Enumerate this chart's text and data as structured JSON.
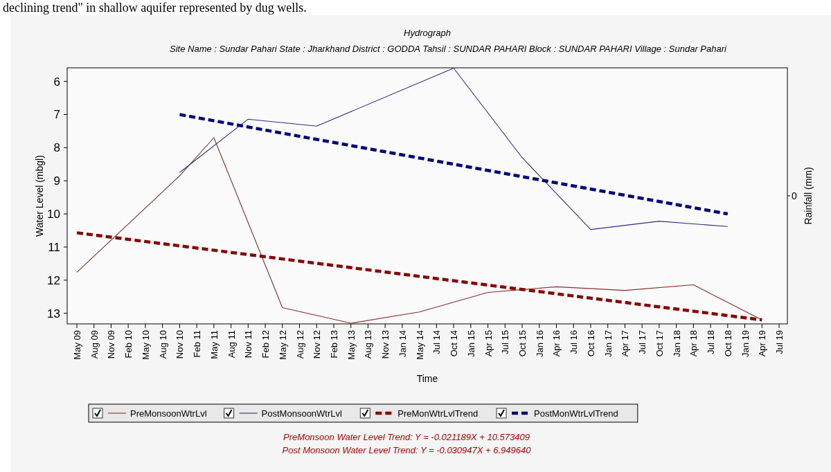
{
  "chart_data": {
    "type": "line",
    "title": "Hydrograph",
    "subtitle": "Site Name : Sundar Pahari  State : Jharkhand District : GODDA  Tahsil : SUNDAR PAHARI  Block : SUNDAR PAHARI Village : Sundar Pahari",
    "xlabel": "Time",
    "ylabel": "Water Level (mbgl)",
    "y2label": "Rainfall (mm)",
    "categories": [
      "May 09",
      "Aug 09",
      "Nov 09",
      "Feb 10",
      "May 10",
      "Aug 10",
      "Nov 10",
      "Feb 11",
      "May 11",
      "Aug 11",
      "Nov 11",
      "Feb 12",
      "May 12",
      "Aug 12",
      "Nov 12",
      "Feb 13",
      "May 13",
      "Aug 13",
      "Nov 13",
      "Jan 14",
      "May 14",
      "Jul 14",
      "Oct 14",
      "Jan 15",
      "Apr 15",
      "Jul 15",
      "Oct 15",
      "Jan 16",
      "Apr 16",
      "Jul 16",
      "Oct 16",
      "Jan 17",
      "Apr 17",
      "Jul 17",
      "Oct 17",
      "Jan 18",
      "Apr 18",
      "Jul 18",
      "Oct 18",
      "Jan 19",
      "Apr 19",
      "Jul 19"
    ],
    "series": [
      {
        "name": "PreMonsoonWtrLvl",
        "color": "#8b2c2c",
        "line_style": "solid",
        "values": [
          11.76,
          null,
          null,
          null,
          null,
          null,
          8.85,
          null,
          7.7,
          null,
          null,
          null,
          12.83,
          null,
          null,
          null,
          13.3,
          null,
          null,
          null,
          12.96,
          null,
          null,
          null,
          12.37,
          null,
          null,
          null,
          12.2,
          null,
          null,
          null,
          12.31,
          null,
          null,
          null,
          12.14,
          null,
          null,
          null,
          13.2,
          null
        ]
      },
      {
        "name": "PostMonsoonWtrLvl",
        "color": "#2c2c8b",
        "line_style": "solid",
        "values": [
          null,
          null,
          null,
          null,
          null,
          null,
          8.75,
          null,
          null,
          null,
          7.14,
          null,
          null,
          null,
          7.35,
          null,
          null,
          null,
          null,
          null,
          null,
          null,
          5.6,
          null,
          null,
          null,
          8.3,
          null,
          null,
          null,
          10.47,
          null,
          null,
          null,
          10.22,
          null,
          10.3,
          null,
          10.38,
          null,
          null,
          null
        ]
      },
      {
        "name": "PreMonWtrLvlTrend",
        "color": "#8b0000",
        "line_style": "dashed",
        "values": [
          10.57,
          null,
          null,
          null,
          null,
          null,
          null,
          null,
          null,
          null,
          null,
          null,
          null,
          null,
          null,
          null,
          null,
          null,
          null,
          null,
          null,
          null,
          null,
          null,
          null,
          null,
          null,
          null,
          null,
          null,
          null,
          null,
          null,
          null,
          null,
          null,
          null,
          null,
          null,
          null,
          13.2,
          null
        ]
      },
      {
        "name": "PostMonWtrLvlTrend",
        "color": "#000080",
        "line_style": "dashed",
        "values": [
          null,
          null,
          null,
          null,
          null,
          null,
          7.0,
          null,
          null,
          null,
          null,
          null,
          null,
          null,
          null,
          null,
          null,
          null,
          null,
          null,
          null,
          null,
          null,
          null,
          null,
          null,
          null,
          null,
          null,
          null,
          null,
          null,
          null,
          null,
          null,
          null,
          null,
          null,
          10.0,
          null,
          null,
          null
        ]
      }
    ],
    "ylim": [
      13.32,
      5.59
    ],
    "yticks": [
      6,
      7,
      8,
      9,
      10,
      11,
      12,
      13
    ],
    "legend": "bottom",
    "annotations": [
      "declining trend\" in shallow aquifer represented by dug wells.",
      "PreMonsoon Water Level Trend: Y = -0.021189X + 10.573409",
      "Post Monsoon Water Level Trend: Y = -0.030947X + 6.949640",
      "0"
    ]
  }
}
